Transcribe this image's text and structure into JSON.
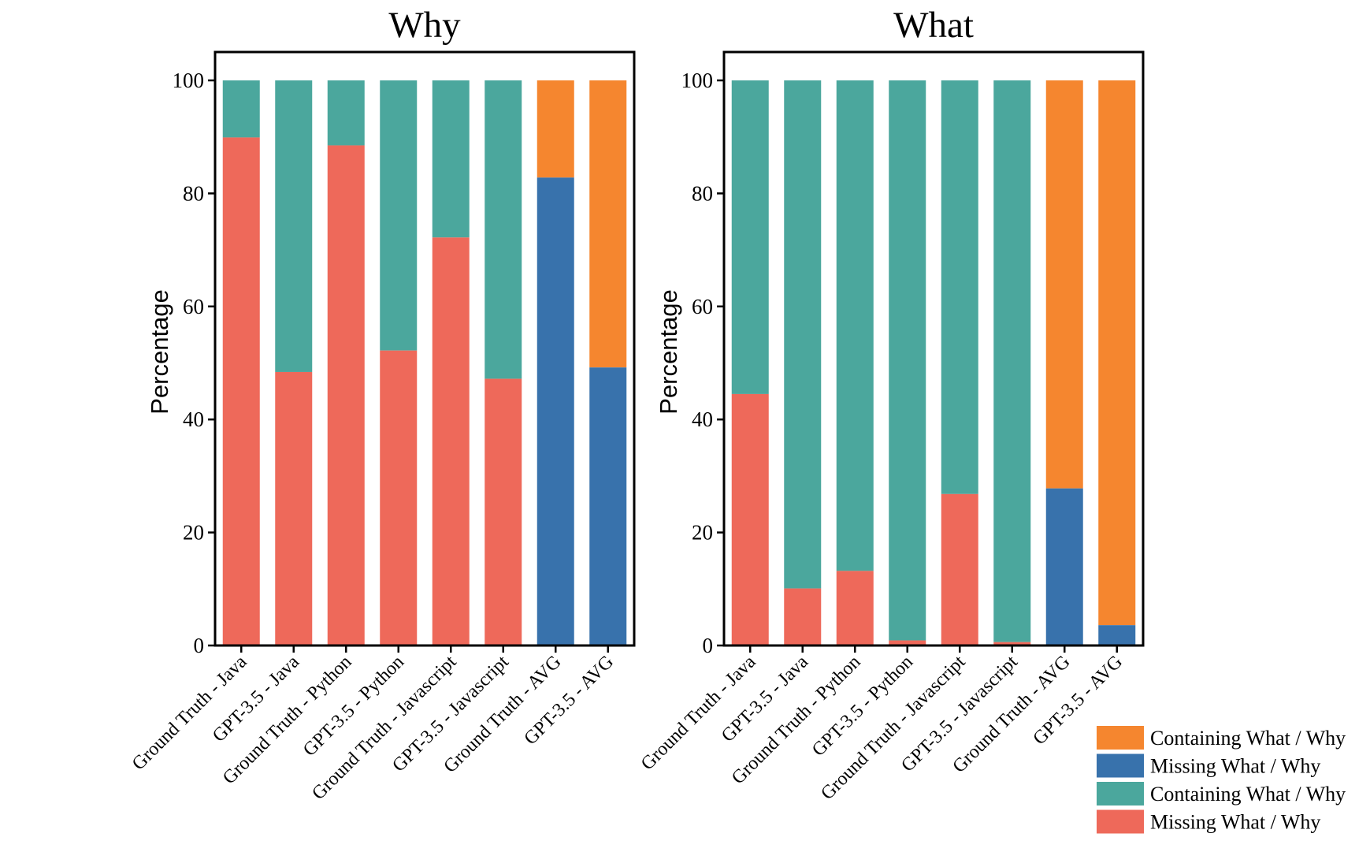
{
  "legend": {
    "position": "bottom-right",
    "entries": [
      {
        "label": "Containing What / Why",
        "color": "#F5862F"
      },
      {
        "label": "Missing What / Why",
        "color": "#3872AC"
      },
      {
        "label": "Containing What / Why",
        "color": "#4BA79D"
      },
      {
        "label": "Missing What / Why",
        "color": "#EE695A"
      }
    ]
  },
  "chart_data": [
    {
      "type": "bar",
      "stacked": true,
      "title": "Why",
      "xlabel": "",
      "ylabel": "Percentage",
      "ylim": [
        0,
        100
      ],
      "yticks": [
        0,
        20,
        40,
        60,
        80,
        100
      ],
      "categories": [
        "Ground Truth - Java",
        "GPT-3.5 - Java",
        "Ground Truth - Python",
        "GPT-3.5 - Python",
        "Ground Truth - Javascript",
        "GPT-3.5 - Javascript",
        "Ground Truth - AVG",
        "GPT-3.5 - AVG"
      ],
      "bars": [
        {
          "bottom": 89.9,
          "bottom_color": "#EE695A",
          "top_color": "#4BA79D"
        },
        {
          "bottom": 48.4,
          "bottom_color": "#EE695A",
          "top_color": "#4BA79D"
        },
        {
          "bottom": 88.5,
          "bottom_color": "#EE695A",
          "top_color": "#4BA79D"
        },
        {
          "bottom": 52.2,
          "bottom_color": "#EE695A",
          "top_color": "#4BA79D"
        },
        {
          "bottom": 72.2,
          "bottom_color": "#EE695A",
          "top_color": "#4BA79D"
        },
        {
          "bottom": 47.2,
          "bottom_color": "#EE695A",
          "top_color": "#4BA79D"
        },
        {
          "bottom": 82.8,
          "bottom_color": "#3872AC",
          "top_color": "#F5862F"
        },
        {
          "bottom": 49.2,
          "bottom_color": "#3872AC",
          "top_color": "#F5862F"
        }
      ]
    },
    {
      "type": "bar",
      "stacked": true,
      "title": "What",
      "xlabel": "",
      "ylabel": "Percentage",
      "ylim": [
        0,
        100
      ],
      "yticks": [
        0,
        20,
        40,
        60,
        80,
        100
      ],
      "categories": [
        "Ground Truth - Java",
        "GPT-3.5 - Java",
        "Ground Truth - Python",
        "GPT-3.5 - Python",
        "Ground Truth - Javascript",
        "GPT-3.5 - Javascript",
        "Ground Truth - AVG",
        "GPT-3.5 - AVG"
      ],
      "bars": [
        {
          "bottom": 44.5,
          "bottom_color": "#EE695A",
          "top_color": "#4BA79D"
        },
        {
          "bottom": 10.1,
          "bottom_color": "#EE695A",
          "top_color": "#4BA79D"
        },
        {
          "bottom": 13.2,
          "bottom_color": "#EE695A",
          "top_color": "#4BA79D"
        },
        {
          "bottom": 0.9,
          "bottom_color": "#EE695A",
          "top_color": "#4BA79D"
        },
        {
          "bottom": 26.8,
          "bottom_color": "#EE695A",
          "top_color": "#4BA79D"
        },
        {
          "bottom": 0.6,
          "bottom_color": "#EE695A",
          "top_color": "#4BA79D"
        },
        {
          "bottom": 27.8,
          "bottom_color": "#3872AC",
          "top_color": "#F5862F"
        },
        {
          "bottom": 3.6,
          "bottom_color": "#3872AC",
          "top_color": "#F5862F"
        }
      ]
    }
  ]
}
